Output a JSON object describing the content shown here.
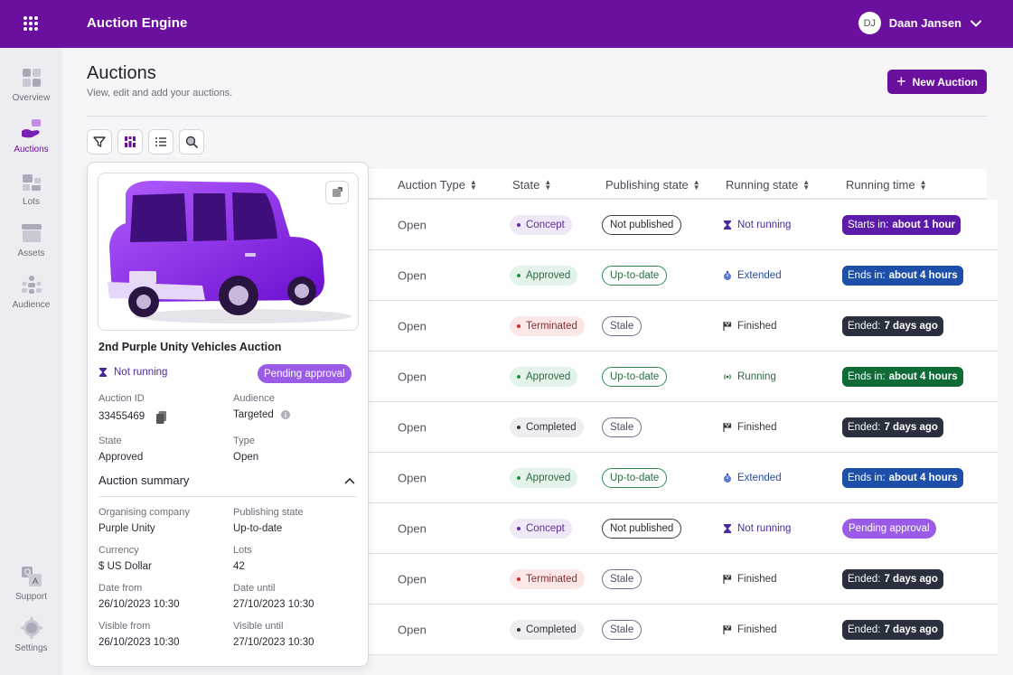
{
  "app": {
    "title": "Auction Engine",
    "user_initials": "DJ",
    "user_name": "Daan Jansen"
  },
  "sidebar": {
    "items": [
      {
        "label": "Overview",
        "icon": "overview-icon"
      },
      {
        "label": "Auctions",
        "icon": "auctions-icon"
      },
      {
        "label": "Lots",
        "icon": "lots-icon"
      },
      {
        "label": "Assets",
        "icon": "assets-icon"
      },
      {
        "label": "Audience",
        "icon": "audience-icon"
      }
    ],
    "bottom": [
      {
        "label": "Support",
        "icon": "support-icon"
      },
      {
        "label": "Settings",
        "icon": "settings-icon"
      }
    ]
  },
  "header": {
    "title": "Auctions",
    "subtitle": "View, edit and add your auctions.",
    "new_button": "New Auction"
  },
  "toolbar": [
    "filter-icon",
    "columns-icon",
    "list-icon",
    "search-icon"
  ],
  "table": {
    "columns": [
      "Auction Type",
      "State",
      "Publishing state",
      "Running state",
      "Running time"
    ],
    "rows": [
      {
        "type": "Open",
        "state": "Concept",
        "publishing": "Not published",
        "running": "Not running",
        "time_label": "Starts in:",
        "time_value": "about 1 hour"
      },
      {
        "type": "Open",
        "state": "Approved",
        "publishing": "Up-to-date",
        "running": "Extended",
        "time_label": "Ends in:",
        "time_value": "about 4 hours"
      },
      {
        "type": "Open",
        "state": "Terminated",
        "publishing": "Stale",
        "running": "Finished",
        "time_label": "Ended:",
        "time_value": "7 days ago"
      },
      {
        "type": "Open",
        "state": "Approved",
        "publishing": "Up-to-date",
        "running": "Running",
        "time_label": "Ends in:",
        "time_value": "about 4 hours"
      },
      {
        "type": "Open",
        "state": "Completed",
        "publishing": "Stale",
        "running": "Finished",
        "time_label": "Ended:",
        "time_value": "7 days ago"
      },
      {
        "type": "Open",
        "state": "Approved",
        "publishing": "Up-to-date",
        "running": "Extended",
        "time_label": "Ends in:",
        "time_value": "about 4 hours"
      },
      {
        "type": "Open",
        "state": "Concept",
        "publishing": "Not published",
        "running": "Not running",
        "time_label": "Pending approval",
        "time_value": ""
      },
      {
        "type": "Open",
        "state": "Terminated",
        "publishing": "Stale",
        "running": "Finished",
        "time_label": "Ended:",
        "time_value": "7 days ago"
      },
      {
        "type": "Open",
        "state": "Completed",
        "publishing": "Stale",
        "running": "Finished",
        "time_label": "Ended:",
        "time_value": "7 days ago"
      }
    ]
  },
  "card": {
    "title": "2nd Purple Unity Vehicles Auction",
    "running_state": "Not running",
    "badge": "Pending approval",
    "auction_id_label": "Auction ID",
    "auction_id": "33455469",
    "audience_label": "Audience",
    "audience": "Targeted",
    "state_label": "State",
    "state": "Approved",
    "type_label": "Type",
    "type": "Open",
    "summary_title": "Auction summary",
    "summary": {
      "org_label": "Organising company",
      "org": "Purple Unity",
      "pub_label": "Publishing state",
      "pub": "Up-to-date",
      "currency_label": "Currency",
      "currency": "$ US Dollar",
      "lots_label": "Lots",
      "lots": "42",
      "date_from_label": "Date from",
      "date_from": "26/10/2023 10:30",
      "date_until_label": "Date until",
      "date_until": "27/10/2023 10:30",
      "visible_from_label": "Visible from",
      "visible_from": "26/10/2023 10:30",
      "visible_until_label": "Visible until",
      "visible_until": "27/10/2023 10:30"
    }
  },
  "colors": {
    "brand": "#6a0f9e",
    "pending": "#9a5ce6"
  }
}
